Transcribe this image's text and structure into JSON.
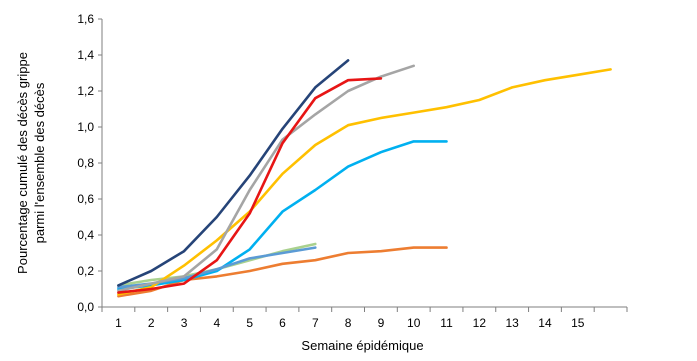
{
  "chart_data": {
    "type": "line",
    "xlabel": "Semaine épidémique",
    "ylabel_lines": [
      "Pourcentage cumulé des décès grippe",
      "parmi l'ensemble des décès"
    ],
    "xlim": [
      0.5,
      16.5
    ],
    "ylim": [
      0,
      1.6
    ],
    "x_ticks": [
      1,
      2,
      3,
      4,
      5,
      6,
      7,
      8,
      9,
      10,
      11,
      12,
      13,
      14,
      15
    ],
    "y_ticks": [
      {
        "value": 0,
        "label": "0,0"
      },
      {
        "value": 0.2,
        "label": "0,2"
      },
      {
        "value": 0.4,
        "label": "0,4"
      },
      {
        "value": 0.6,
        "label": "0,6"
      },
      {
        "value": 0.8,
        "label": "0,8"
      },
      {
        "value": 1.0,
        "label": "1,0"
      },
      {
        "value": 1.2,
        "label": "1,2"
      },
      {
        "value": 1.4,
        "label": "1,4"
      },
      {
        "value": 1.6,
        "label": "1,6"
      }
    ],
    "grid": false,
    "legend": "none",
    "series": [
      {
        "color": "#ed7d31",
        "x": [
          1,
          2,
          3,
          4,
          5,
          6,
          7,
          8,
          9,
          10,
          11
        ],
        "y": [
          0.06,
          0.09,
          0.15,
          0.17,
          0.2,
          0.24,
          0.26,
          0.3,
          0.31,
          0.33,
          0.33
        ]
      },
      {
        "color": "#a9d18e",
        "x": [
          1,
          2,
          3,
          4,
          5,
          6,
          7
        ],
        "y": [
          0.12,
          0.15,
          0.17,
          0.21,
          0.26,
          0.31,
          0.35
        ]
      },
      {
        "color": "#00b0f0",
        "x": [
          1,
          2,
          3,
          4,
          5,
          6,
          7,
          8,
          9,
          10,
          11
        ],
        "y": [
          0.1,
          0.12,
          0.15,
          0.2,
          0.32,
          0.53,
          0.65,
          0.78,
          0.86,
          0.92,
          0.92
        ]
      },
      {
        "color": "#5b9bd5",
        "x": [
          1,
          2,
          3,
          4,
          5,
          6,
          7
        ],
        "y": [
          0.11,
          0.13,
          0.16,
          0.21,
          0.27,
          0.3,
          0.33
        ]
      },
      {
        "color": "#ffc000",
        "x": [
          1,
          2,
          3,
          4,
          5,
          6,
          7,
          8,
          9,
          10,
          11,
          12,
          13,
          14,
          15,
          16
        ],
        "y": [
          0.07,
          0.11,
          0.23,
          0.37,
          0.53,
          0.74,
          0.9,
          1.01,
          1.05,
          1.08,
          1.11,
          1.15,
          1.22,
          1.26,
          1.29,
          1.32
        ]
      },
      {
        "color": "#a5a5a5",
        "x": [
          1,
          2,
          3,
          4,
          5,
          6,
          7,
          8,
          9,
          10
        ],
        "y": [
          0.09,
          0.13,
          0.17,
          0.32,
          0.65,
          0.93,
          1.07,
          1.2,
          1.28,
          1.34
        ]
      },
      {
        "color": "#264478",
        "x": [
          1,
          2,
          3,
          4,
          5,
          6,
          7,
          8
        ],
        "y": [
          0.12,
          0.2,
          0.31,
          0.5,
          0.73,
          0.99,
          1.22,
          1.37
        ]
      },
      {
        "color": "#e71515",
        "x": [
          1,
          2,
          3,
          4,
          5,
          6,
          7,
          8,
          9
        ],
        "y": [
          0.08,
          0.1,
          0.13,
          0.26,
          0.52,
          0.91,
          1.16,
          1.26,
          1.27
        ]
      }
    ]
  }
}
